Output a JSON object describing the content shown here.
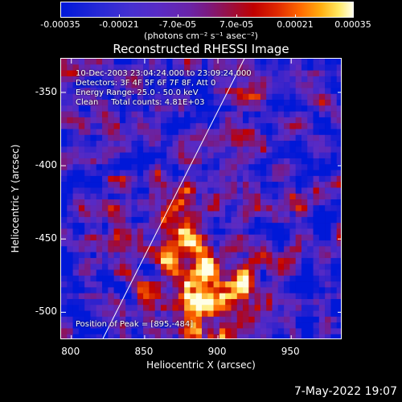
{
  "colorbar": {
    "ticks": [
      "-0.00035",
      "-0.00021",
      "-7.0e-05",
      "7.0e-05",
      "0.00021",
      "0.00035"
    ],
    "units": "(photons cm⁻² s⁻¹ asec⁻²)",
    "range": [
      -0.00035,
      0.00035
    ]
  },
  "annotations": {
    "time_range": "10-Dec-2003 23:04:24.000 to 23:09:24.000",
    "detectors": "Detectors: 3F 4F 5F 6F 7F 8F, Att 0",
    "energy": "Energy Range: 25.0 - 50.0 keV",
    "method": "Clean     Total counts: 4.81E+03",
    "peak": "Position of Peak = [895,-484]"
  },
  "footer": {
    "date": "7-May-2022 19:07"
  },
  "chart_data": {
    "type": "heatmap",
    "title": "Reconstructed RHESSI Image",
    "xlabel": "Heliocentric X (arcsec)",
    "ylabel": "Heliocentric Y (arcsec)",
    "xlim": [
      793,
      985
    ],
    "ylim": [
      -519,
      -327
    ],
    "x_ticks": [
      "800",
      "850",
      "900",
      "950"
    ],
    "x_tick_values": [
      800,
      850,
      900,
      950
    ],
    "y_ticks": [
      "-350",
      "-400",
      "-450",
      "-500"
    ],
    "y_tick_values": [
      -350,
      -400,
      -450,
      -500
    ],
    "peak": [
      895,
      -484
    ],
    "limb_line": {
      "x": [
        821,
        918
      ],
      "y": [
        -519,
        -327
      ]
    },
    "colormap": [
      "#0018d8",
      "#5a2bc4",
      "#7a1a82",
      "#c00000",
      "#ff6a00",
      "#ffe860",
      "#ffffe8"
    ]
  }
}
